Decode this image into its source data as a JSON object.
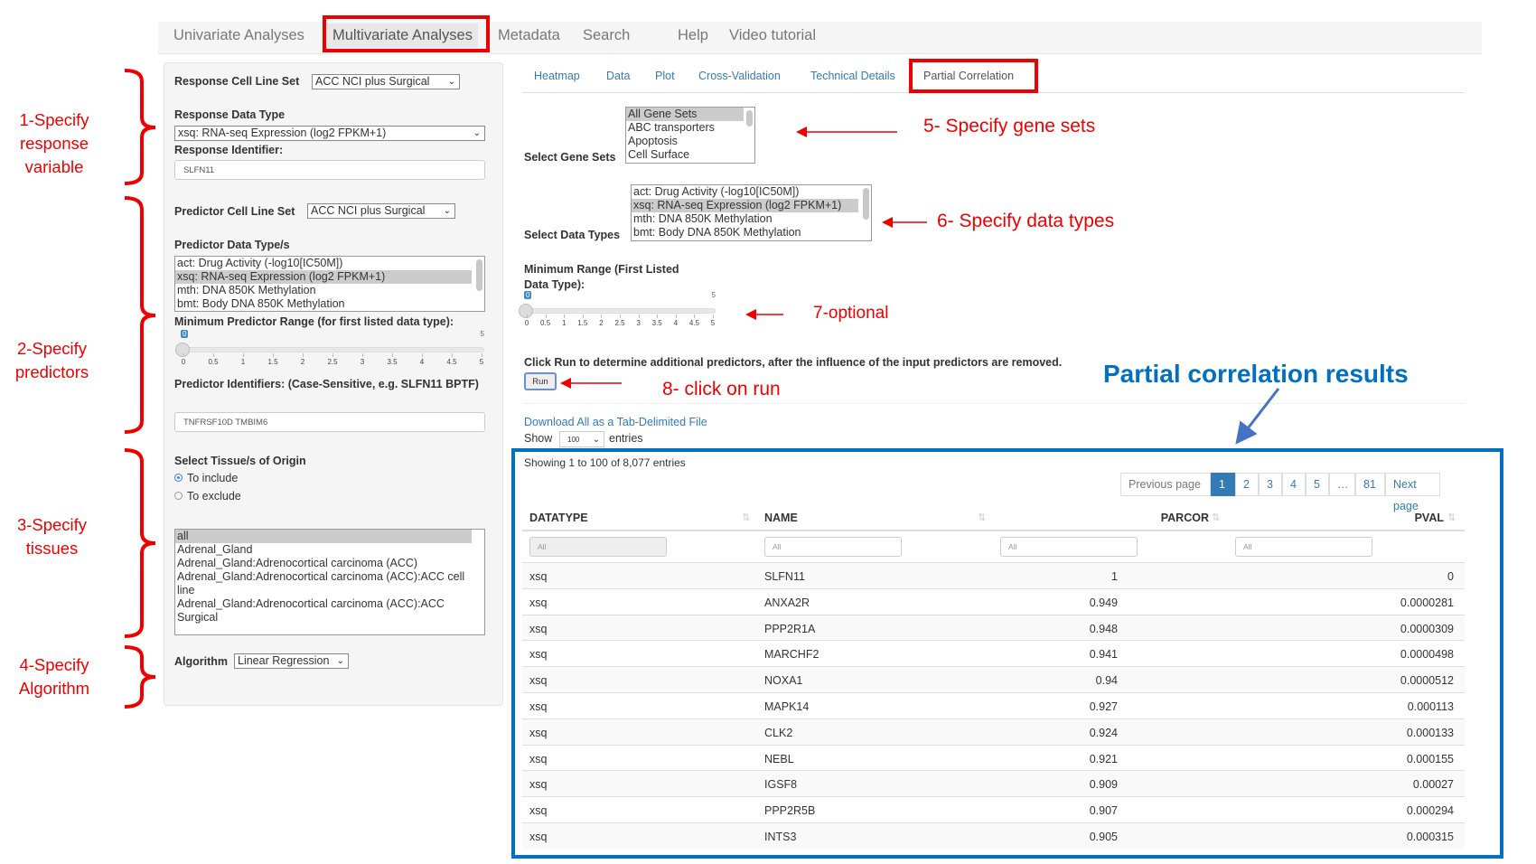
{
  "nav": {
    "items": [
      "Univariate Analyses",
      "Multivariate Analyses",
      "Metadata",
      "Search",
      "Help",
      "Video tutorial"
    ],
    "active": "Multivariate Analyses"
  },
  "left": {
    "response_cell_line_set": {
      "label": "Response Cell Line Set",
      "value": "ACC NCI plus Surgical"
    },
    "response_data_type": {
      "label": "Response Data Type",
      "value": "xsq: RNA-seq Expression (log2 FPKM+1)"
    },
    "response_identifier": {
      "label": "Response Identifier:",
      "value": "SLFN11"
    },
    "predictor_cell_line_set": {
      "label": "Predictor Cell Line Set",
      "value": "ACC NCI plus Surgical"
    },
    "predictor_data_types": {
      "label": "Predictor Data Type/s",
      "options": [
        "act: Drug Activity (-log10[IC50M])",
        "xsq: RNA-seq Expression (log2 FPKM+1)",
        "mth: DNA 850K Methylation",
        "bmt: Body DNA 850K Methylation"
      ],
      "selected": "xsq: RNA-seq Expression (log2 FPKM+1)"
    },
    "min_predictor_range": {
      "label": "Minimum Predictor Range (for first listed data type):",
      "value": 0,
      "min": 0,
      "max": 5,
      "ticks": [
        "0",
        "0.5",
        "1",
        "1.5",
        "2",
        "2.5",
        "3",
        "3.5",
        "4",
        "4.5",
        "5"
      ]
    },
    "predictor_identifiers": {
      "label": "Predictor Identifiers: (Case-Sensitive, e.g. SLFN11 BPTF)",
      "value": "TNFRSF10D TMBIM6"
    },
    "tissue": {
      "label": "Select Tissue/s of Origin",
      "options": [
        "To include",
        "To exclude"
      ],
      "selected": "To include",
      "list": [
        "all",
        "Adrenal_Gland",
        "Adrenal_Gland:Adrenocortical carcinoma (ACC)",
        "Adrenal_Gland:Adrenocortical carcinoma (ACC):ACC cell line",
        "Adrenal_Gland:Adrenocortical carcinoma (ACC):ACC Surgical"
      ],
      "list_selected": "all"
    },
    "algorithm": {
      "label": "Algorithm",
      "value": "Linear Regression"
    }
  },
  "tabs": {
    "items": [
      "Heatmap",
      "Data",
      "Plot",
      "Cross-Validation",
      "Technical Details",
      "Partial Correlation"
    ],
    "active": "Partial Correlation"
  },
  "main": {
    "gene_sets": {
      "label": "Select Gene Sets",
      "options": [
        "All Gene Sets",
        "ABC transporters",
        "Apoptosis",
        "Cell Surface"
      ],
      "selected": "All Gene Sets"
    },
    "data_types": {
      "label": "Select Data Types",
      "options": [
        "act: Drug Activity (-log10[IC50M])",
        "xsq: RNA-seq Expression (log2 FPKM+1)",
        "mth: DNA 850K Methylation",
        "bmt: Body DNA 850K Methylation"
      ],
      "selected": "xsq: RNA-seq Expression (log2 FPKM+1)"
    },
    "min_range": {
      "label1": "Minimum Range (First Listed",
      "label2": "Data Type):",
      "value": 0,
      "min": 0,
      "max": 5,
      "ticks": [
        "0",
        "0.5",
        "1",
        "1.5",
        "2",
        "2.5",
        "3",
        "3.5",
        "4",
        "4.5",
        "5"
      ]
    },
    "run_text": "Click Run to determine additional predictors, after the influence of the input predictors are removed.",
    "run_button": "Run",
    "download_link": "Download All as a Tab-Delimited File",
    "show_label": "Show",
    "show_value": "100",
    "entries_label": "entries"
  },
  "table": {
    "info": "Showing 1 to 100 of 8,077 entries",
    "pagination": {
      "previous": "Previous page",
      "pages": [
        "1",
        "2",
        "3",
        "4",
        "5",
        "…",
        "81"
      ],
      "current": "1",
      "next": "Next page"
    },
    "columns": [
      "DATATYPE",
      "NAME",
      "PARCOR",
      "PVAL"
    ],
    "filter_placeholder": "All",
    "rows": [
      [
        "xsq",
        "SLFN11",
        "1",
        "0"
      ],
      [
        "xsq",
        "ANXA2R",
        "0.949",
        "0.0000281"
      ],
      [
        "xsq",
        "PPP2R1A",
        "0.948",
        "0.0000309"
      ],
      [
        "xsq",
        "MARCHF2",
        "0.941",
        "0.0000498"
      ],
      [
        "xsq",
        "NOXA1",
        "0.94",
        "0.0000512"
      ],
      [
        "xsq",
        "MAPK14",
        "0.927",
        "0.000113"
      ],
      [
        "xsq",
        "CLK2",
        "0.924",
        "0.000133"
      ],
      [
        "xsq",
        "NEBL",
        "0.921",
        "0.000155"
      ],
      [
        "xsq",
        "IGSF8",
        "0.909",
        "0.00027"
      ],
      [
        "xsq",
        "PPP2R5B",
        "0.907",
        "0.000294"
      ],
      [
        "xsq",
        "INTS3",
        "0.905",
        "0.000315"
      ]
    ]
  },
  "annotations": {
    "step1": "1-Specify response variable",
    "step2": "2-Specify predictors",
    "step3": "3-Specify tissues",
    "step4": "4-Specify Algorithm",
    "step5": "5- Specify gene sets",
    "step6": "6- Specify data types",
    "step7": "7-optional",
    "step8": "8- click on run",
    "results": "Partial correlation results",
    "colors": {
      "annotation_red": "#ee0000",
      "results_blue": "#0070c0",
      "link_blue": "#337ab7"
    }
  }
}
